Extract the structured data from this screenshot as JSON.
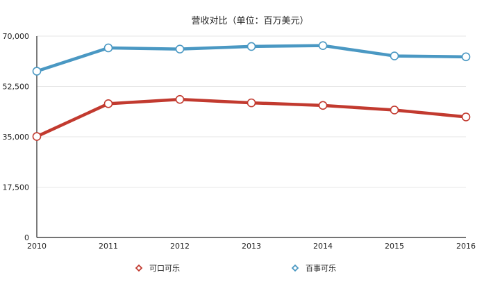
{
  "chart_data": {
    "type": "line",
    "title": "营收对比（单位：百万美元）",
    "xlabel": "",
    "ylabel": "",
    "x": [
      "2010",
      "2011",
      "2012",
      "2013",
      "2014",
      "2015",
      "2016"
    ],
    "ylim": [
      0,
      70000
    ],
    "yticks": [
      "0",
      "17,500",
      "35,000",
      "52,500",
      "70,000"
    ],
    "ytick_values": [
      0,
      17500,
      35000,
      52500,
      70000
    ],
    "grid": true,
    "legend_placement": "bottom",
    "series": [
      {
        "name": "可口可乐",
        "color": "#c23a2f",
        "values": [
          35100,
          46500,
          48000,
          46800,
          45900,
          44300,
          41900
        ]
      },
      {
        "name": "百事可乐",
        "color": "#4a98c3",
        "values": [
          57800,
          65900,
          65500,
          66400,
          66700,
          63100,
          62800
        ]
      }
    ]
  }
}
